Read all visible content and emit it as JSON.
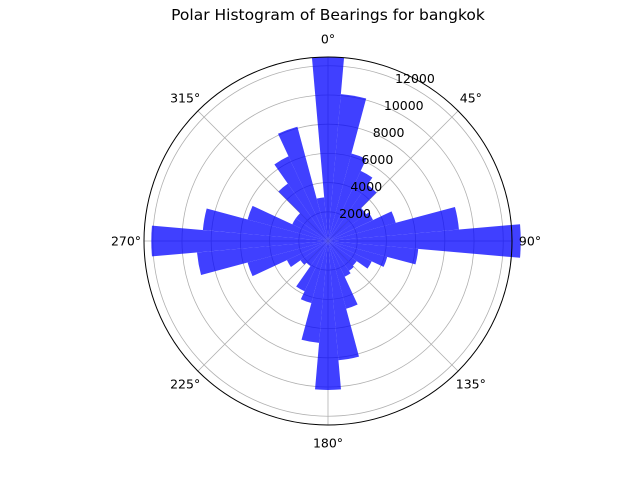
{
  "chart_data": {
    "type": "polar_bar",
    "title": "Polar Histogram of Bearings for bangkok",
    "theta_direction": "clockwise",
    "theta_zero": "north",
    "bin_width_degrees": 10,
    "bins": [
      0,
      10,
      20,
      30,
      40,
      50,
      60,
      70,
      80,
      90,
      100,
      110,
      120,
      130,
      140,
      150,
      160,
      170,
      180,
      190,
      200,
      210,
      220,
      230,
      240,
      250,
      260,
      270,
      280,
      290,
      300,
      310,
      320,
      330,
      340,
      350
    ],
    "values": [
      12600,
      10100,
      6200,
      5300,
      4700,
      3200,
      3400,
      4800,
      9000,
      13200,
      6200,
      4200,
      3300,
      2400,
      2500,
      2700,
      4800,
      8200,
      10200,
      7000,
      4400,
      3800,
      2100,
      2300,
      3100,
      5700,
      9000,
      12100,
      8600,
      5700,
      2700,
      2700,
      4800,
      6400,
      8100,
      3000
    ],
    "rlim": [
      0,
      12600
    ],
    "r_ticks": [
      "2000",
      "4000",
      "6000",
      "8000",
      "10000",
      "12000"
    ],
    "r_tick_values": [
      2000,
      4000,
      6000,
      8000,
      10000,
      12000
    ],
    "theta_ticks": [
      "0°",
      "45°",
      "90°",
      "135°",
      "180°",
      "225°",
      "270°",
      "315°"
    ],
    "theta_tick_values": [
      0,
      45,
      90,
      135,
      180,
      225,
      270,
      315
    ],
    "bar_color": "#0000ff",
    "bar_alpha": 0.75,
    "grid": true
  }
}
